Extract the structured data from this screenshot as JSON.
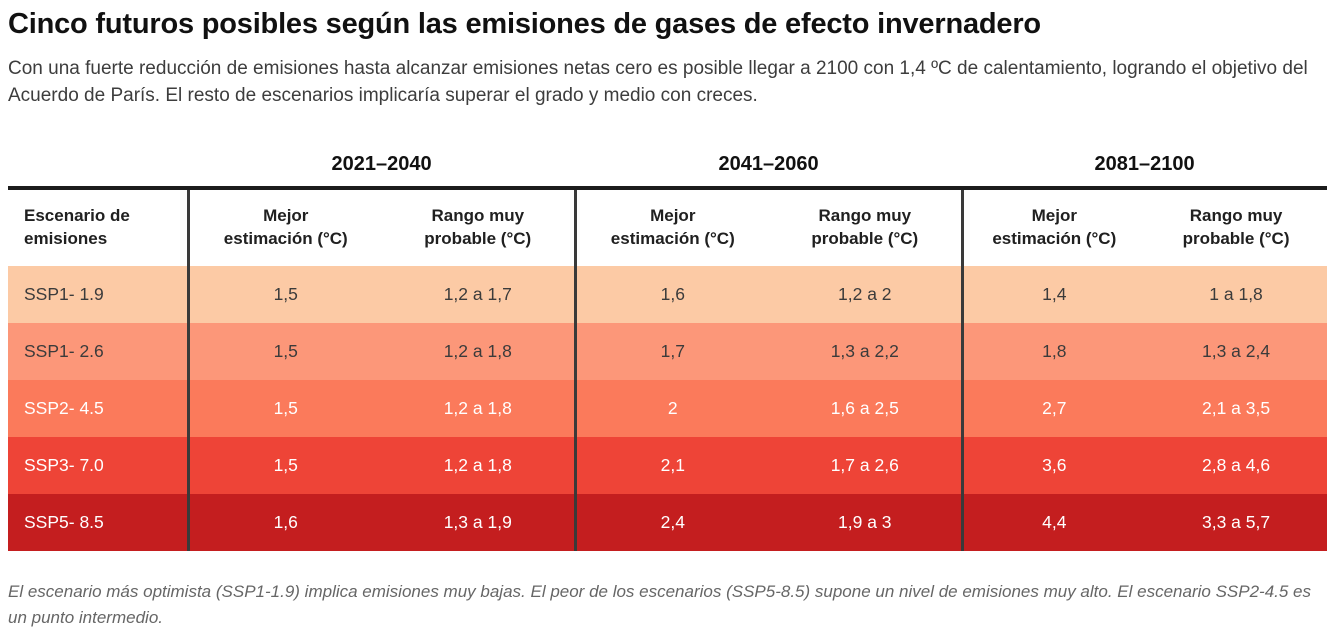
{
  "title": "Cinco futuros posibles según las emisiones de gases de efecto invernadero",
  "subtitle": "Con una fuerte reducción de emisiones hasta alcanzar emisiones netas cero es posible llegar a 2100 con 1,4 ºC de calentamiento, logrando el objetivo del Acuerdo de París. El resto de escenarios implicaría superar el grado y medio con creces.",
  "footnote": "El escenario más optimista (SSP1-1.9) implica emisiones muy bajas. El peor de los escenarios (SSP5-8.5) supone un nivel de emisiones muy alto. El escenario SSP2-4.5 es un punto intermedio.",
  "chart_data": {
    "type": "table",
    "title": "Cinco futuros posibles según las emisiones de gases de efecto invernadero",
    "period_headers": [
      "2021–2040",
      "2041–2060",
      "2081–2100"
    ],
    "scenario_header_lines": [
      "Escenario de",
      "emisiones"
    ],
    "best_header_lines": [
      "Mejor",
      "estimación (°C)"
    ],
    "range_header_lines": [
      "Rango muy",
      "probable (°C)"
    ],
    "columns_per_period": [
      "Mejor estimación (°C)",
      "Rango muy probable (°C)"
    ],
    "rows": [
      {
        "label": "SSP1- 1.9",
        "values": [
          "1,5",
          "1,2 a 1,7",
          "1,6",
          "1,2 a 2",
          "1,4",
          "1 a 1,8"
        ],
        "bg": "#fccaa5",
        "fg": "#3b3b3b"
      },
      {
        "label": "SSP1- 2.6",
        "values": [
          "1,5",
          "1,2 a 1,8",
          "1,7",
          "1,3 a 2,2",
          "1,8",
          "1,3 a 2,4"
        ],
        "bg": "#fc9779",
        "fg": "#3b3b3b"
      },
      {
        "label": "SSP2- 4.5",
        "values": [
          "1,5",
          "1,2 a 1,8",
          "2",
          "1,6 a 2,5",
          "2,7",
          "2,1 a 3,5"
        ],
        "bg": "#fb7a5b",
        "fg": "#ffffff"
      },
      {
        "label": "SSP3- 7.0",
        "values": [
          "1,5",
          "1,2 a 1,8",
          "2,1",
          "1,7 a 2,6",
          "3,6",
          "2,8 a 4,6"
        ],
        "bg": "#ee4437",
        "fg": "#ffffff"
      },
      {
        "label": "SSP5- 8.5",
        "values": [
          "1,6",
          "1,3 a 1,9",
          "2,4",
          "1,9 a 3",
          "4,4",
          "3,3 a 5,7"
        ],
        "bg": "#c41e1f",
        "fg": "#ffffff"
      }
    ],
    "colors": {
      "divider": "#3a3a3a",
      "header_top_border": "#1c1c1c",
      "row_scale": [
        "#fccaa5",
        "#fc9779",
        "#fb7a5b",
        "#ee4437",
        "#c41e1f"
      ]
    }
  }
}
